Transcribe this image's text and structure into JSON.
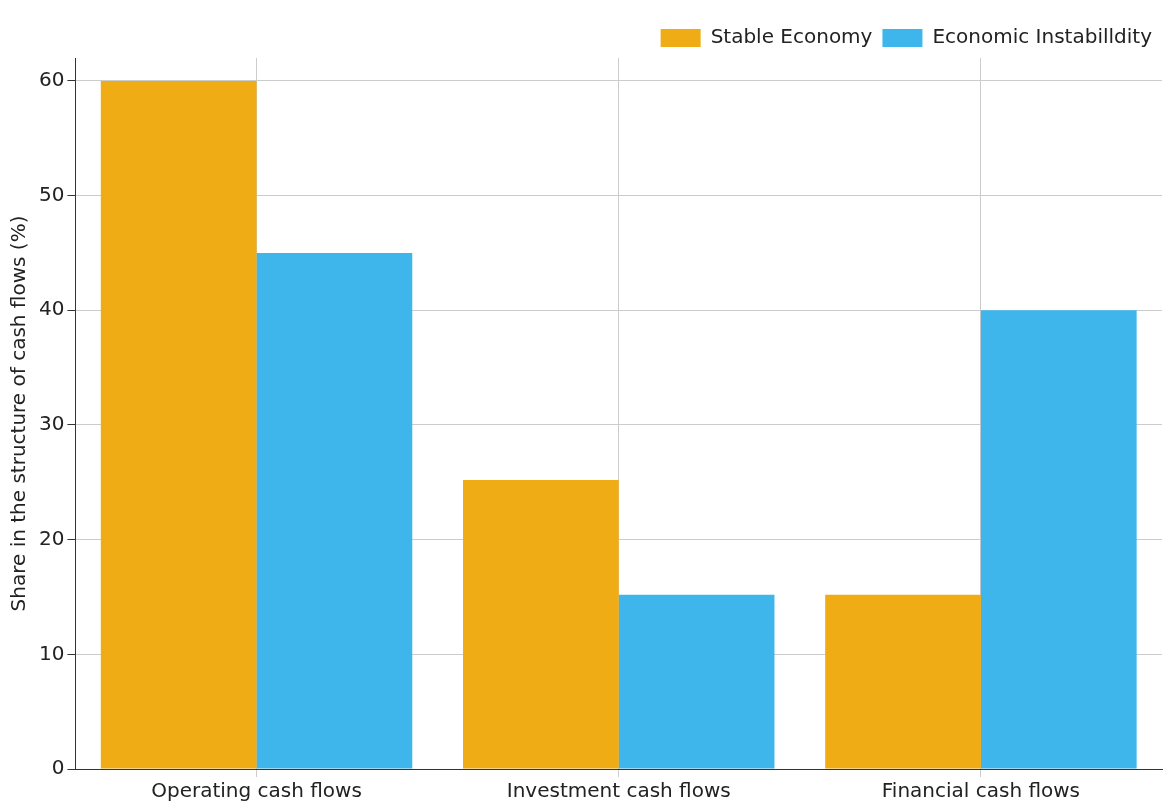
{
  "chart_data": {
    "type": "bar",
    "ylabel": "Share in the structure of cash flows (%)",
    "categories": [
      "Operating cash flows",
      "Investment cash flows",
      "Financial cash flows"
    ],
    "series": [
      {
        "name": "Stable Economy",
        "color": "#efac14",
        "values": [
          60,
          25.2,
          15.2
        ]
      },
      {
        "name": "Economic Instabilldity",
        "color": "#3eb6ec",
        "values": [
          45,
          15.2,
          40
        ]
      }
    ],
    "ylim": [
      0,
      62
    ],
    "yticks": [
      0,
      10,
      20,
      30,
      40,
      50,
      60
    ],
    "grid": true,
    "legend": "top right"
  }
}
